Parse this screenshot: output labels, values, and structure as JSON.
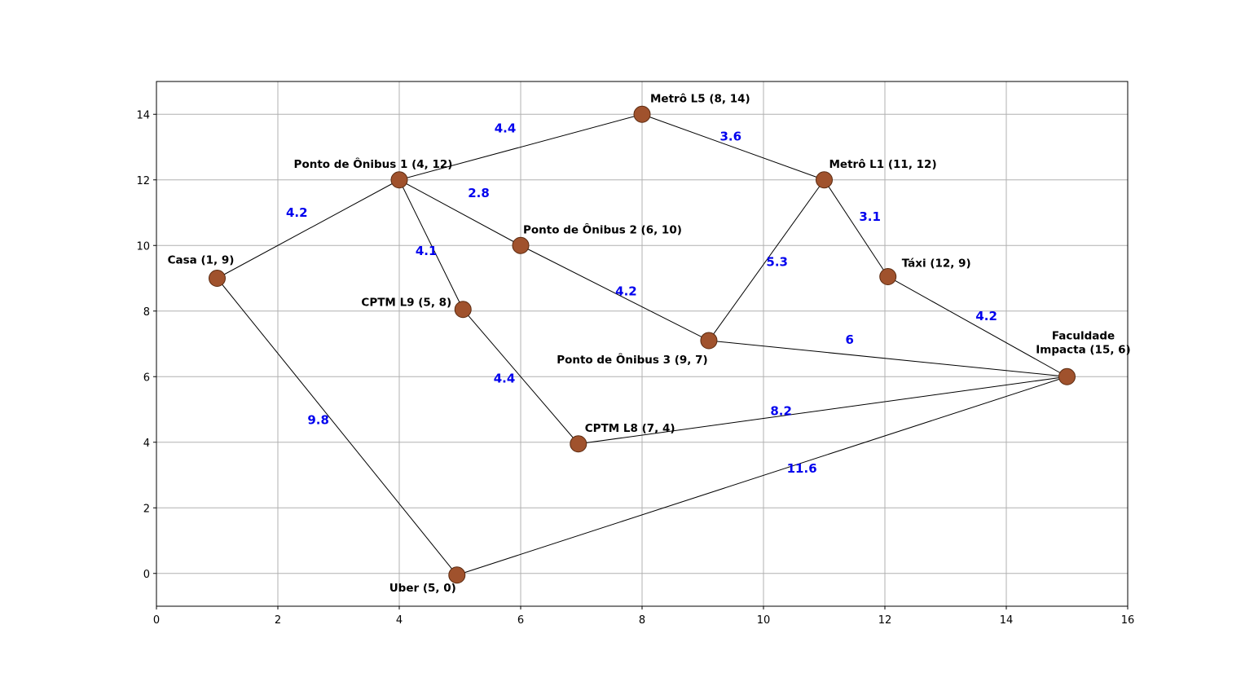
{
  "colors": {
    "node_fill": "#a0522d",
    "node_stroke": "#5a2a10",
    "edge": "#000000",
    "edge_label": "#0000ee",
    "grid": "#b0b0b0"
  },
  "chart_data": {
    "type": "scatter",
    "graph": true,
    "xlim": [
      0,
      16
    ],
    "ylim": [
      -1,
      15
    ],
    "xticks": [
      0,
      2,
      4,
      6,
      8,
      10,
      12,
      14,
      16
    ],
    "yticks": [
      0,
      2,
      4,
      6,
      8,
      10,
      12,
      14
    ],
    "grid": true,
    "nodes": [
      {
        "id": "casa",
        "label": "Casa (1, 9)",
        "x": 1,
        "y": 9
      },
      {
        "id": "po1",
        "label": "Ponto de Ônibus 1 (4, 12)",
        "x": 4,
        "y": 12
      },
      {
        "id": "po2",
        "label": "Ponto de Ônibus 2 (6, 10)",
        "x": 6,
        "y": 10
      },
      {
        "id": "po3",
        "label": "Ponto de Ônibus 3 (9, 7)",
        "x": 9.1,
        "y": 7.1
      },
      {
        "id": "cptm9",
        "label": "CPTM L9 (5, 8)",
        "x": 5.05,
        "y": 8.05
      },
      {
        "id": "cptm8",
        "label": "CPTM L8 (7, 4)",
        "x": 6.95,
        "y": 3.95
      },
      {
        "id": "metro5",
        "label": "Metrô L5 (8, 14)",
        "x": 8,
        "y": 14
      },
      {
        "id": "metro1",
        "label": "Metrô L1 (11, 12)",
        "x": 11,
        "y": 12
      },
      {
        "id": "taxi",
        "label": "Táxi (12, 9)",
        "x": 12.05,
        "y": 9.05
      },
      {
        "id": "faculdade",
        "label": [
          "Faculdade",
          "Impacta (15, 6)"
        ],
        "x": 15,
        "y": 6
      },
      {
        "id": "uber",
        "label": "Uber (5, 0)",
        "x": 4.95,
        "y": -0.05
      }
    ],
    "edges": [
      {
        "from": "casa",
        "to": "po1",
        "weight": "4.2"
      },
      {
        "from": "casa",
        "to": "uber",
        "weight": "9.8"
      },
      {
        "from": "po1",
        "to": "metro5",
        "weight": "4.4"
      },
      {
        "from": "po1",
        "to": "po2",
        "weight": "2.8"
      },
      {
        "from": "po1",
        "to": "cptm9",
        "weight": "4.1"
      },
      {
        "from": "po2",
        "to": "po3",
        "weight": "4.2"
      },
      {
        "from": "metro5",
        "to": "metro1",
        "weight": "3.6"
      },
      {
        "from": "metro1",
        "to": "po3",
        "weight": "5.3"
      },
      {
        "from": "metro1",
        "to": "taxi",
        "weight": "3.1"
      },
      {
        "from": "taxi",
        "to": "faculdade",
        "weight": "4.2"
      },
      {
        "from": "po3",
        "to": "faculdade",
        "weight": "6"
      },
      {
        "from": "cptm9",
        "to": "cptm8",
        "weight": "4.4"
      },
      {
        "from": "cptm8",
        "to": "faculdade",
        "weight": "8.2"
      },
      {
        "from": "uber",
        "to": "faculdade",
        "weight": "11.6"
      }
    ]
  }
}
